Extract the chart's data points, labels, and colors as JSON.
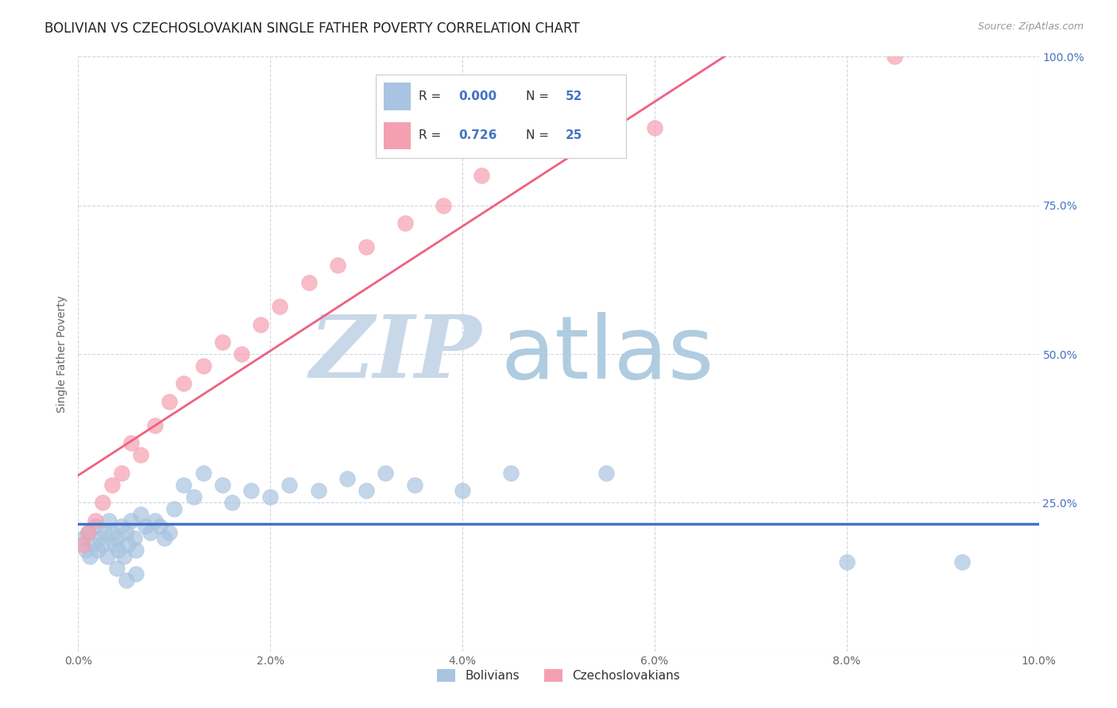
{
  "title": "BOLIVIAN VS CZECHOSLOVAKIAN SINGLE FATHER POVERTY CORRELATION CHART",
  "source_text": "Source: ZipAtlas.com",
  "ylabel": "Single Father Poverty",
  "xlim": [
    0.0,
    10.0
  ],
  "ylim": [
    0.0,
    100.0
  ],
  "xticks": [
    0.0,
    2.0,
    4.0,
    6.0,
    8.0,
    10.0
  ],
  "xtick_labels": [
    "0.0%",
    "2.0%",
    "4.0%",
    "6.0%",
    "8.0%",
    "10.0%"
  ],
  "yticks": [
    0.0,
    25.0,
    50.0,
    75.0,
    100.0
  ],
  "ytick_labels_right": [
    "25.0%",
    "50.0%",
    "75.0%",
    "100.0%"
  ],
  "legend_r_bolivians": "0.000",
  "legend_n_bolivians": "52",
  "legend_r_czech": "0.726",
  "legend_n_czech": "25",
  "bolivian_color": "#a8c4e0",
  "czech_color": "#f4a0b0",
  "trend_bolivian_color": "#4472c4",
  "trend_czech_color": "#f06080",
  "watermark_zip_color": "#c8d8e8",
  "watermark_atlas_color": "#b0cce0",
  "background_color": "#ffffff",
  "grid_color": "#d0d8e0",
  "bolivians_x": [
    0.05,
    0.08,
    0.1,
    0.12,
    0.15,
    0.18,
    0.2,
    0.22,
    0.25,
    0.28,
    0.3,
    0.32,
    0.35,
    0.38,
    0.4,
    0.42,
    0.45,
    0.48,
    0.5,
    0.52,
    0.55,
    0.58,
    0.6,
    0.65,
    0.7,
    0.75,
    0.8,
    0.85,
    0.9,
    0.95,
    1.0,
    1.1,
    1.2,
    1.3,
    1.5,
    1.6,
    1.8,
    2.0,
    2.2,
    2.5,
    2.8,
    3.0,
    3.2,
    3.5,
    4.0,
    4.5,
    5.5,
    8.0,
    9.2,
    0.4,
    0.5,
    0.6
  ],
  "bolivians_y": [
    19.0,
    17.0,
    20.0,
    16.0,
    18.0,
    21.0,
    17.0,
    19.0,
    18.0,
    20.0,
    16.0,
    22.0,
    20.0,
    18.0,
    19.0,
    17.0,
    21.0,
    16.0,
    20.0,
    18.0,
    22.0,
    19.0,
    17.0,
    23.0,
    21.0,
    20.0,
    22.0,
    21.0,
    19.0,
    20.0,
    24.0,
    28.0,
    26.0,
    30.0,
    28.0,
    25.0,
    27.0,
    26.0,
    28.0,
    27.0,
    29.0,
    27.0,
    30.0,
    28.0,
    27.0,
    30.0,
    30.0,
    15.0,
    15.0,
    14.0,
    12.0,
    13.0
  ],
  "czech_x": [
    0.05,
    0.1,
    0.18,
    0.25,
    0.35,
    0.45,
    0.55,
    0.65,
    0.8,
    0.95,
    1.1,
    1.3,
    1.5,
    1.7,
    1.9,
    2.1,
    2.4,
    2.7,
    3.0,
    3.4,
    3.8,
    4.2,
    5.0,
    6.0,
    8.5
  ],
  "czech_y": [
    18.0,
    20.0,
    22.0,
    25.0,
    28.0,
    30.0,
    35.0,
    33.0,
    38.0,
    42.0,
    45.0,
    48.0,
    52.0,
    50.0,
    55.0,
    58.0,
    62.0,
    65.0,
    68.0,
    72.0,
    75.0,
    80.0,
    85.0,
    88.0,
    100.0
  ],
  "title_fontsize": 12,
  "axis_label_fontsize": 10,
  "tick_fontsize": 10,
  "legend_fontsize": 12,
  "right_tick_color": "#4472c4",
  "title_color": "#222222",
  "source_color": "#999999",
  "label_color": "#666666"
}
